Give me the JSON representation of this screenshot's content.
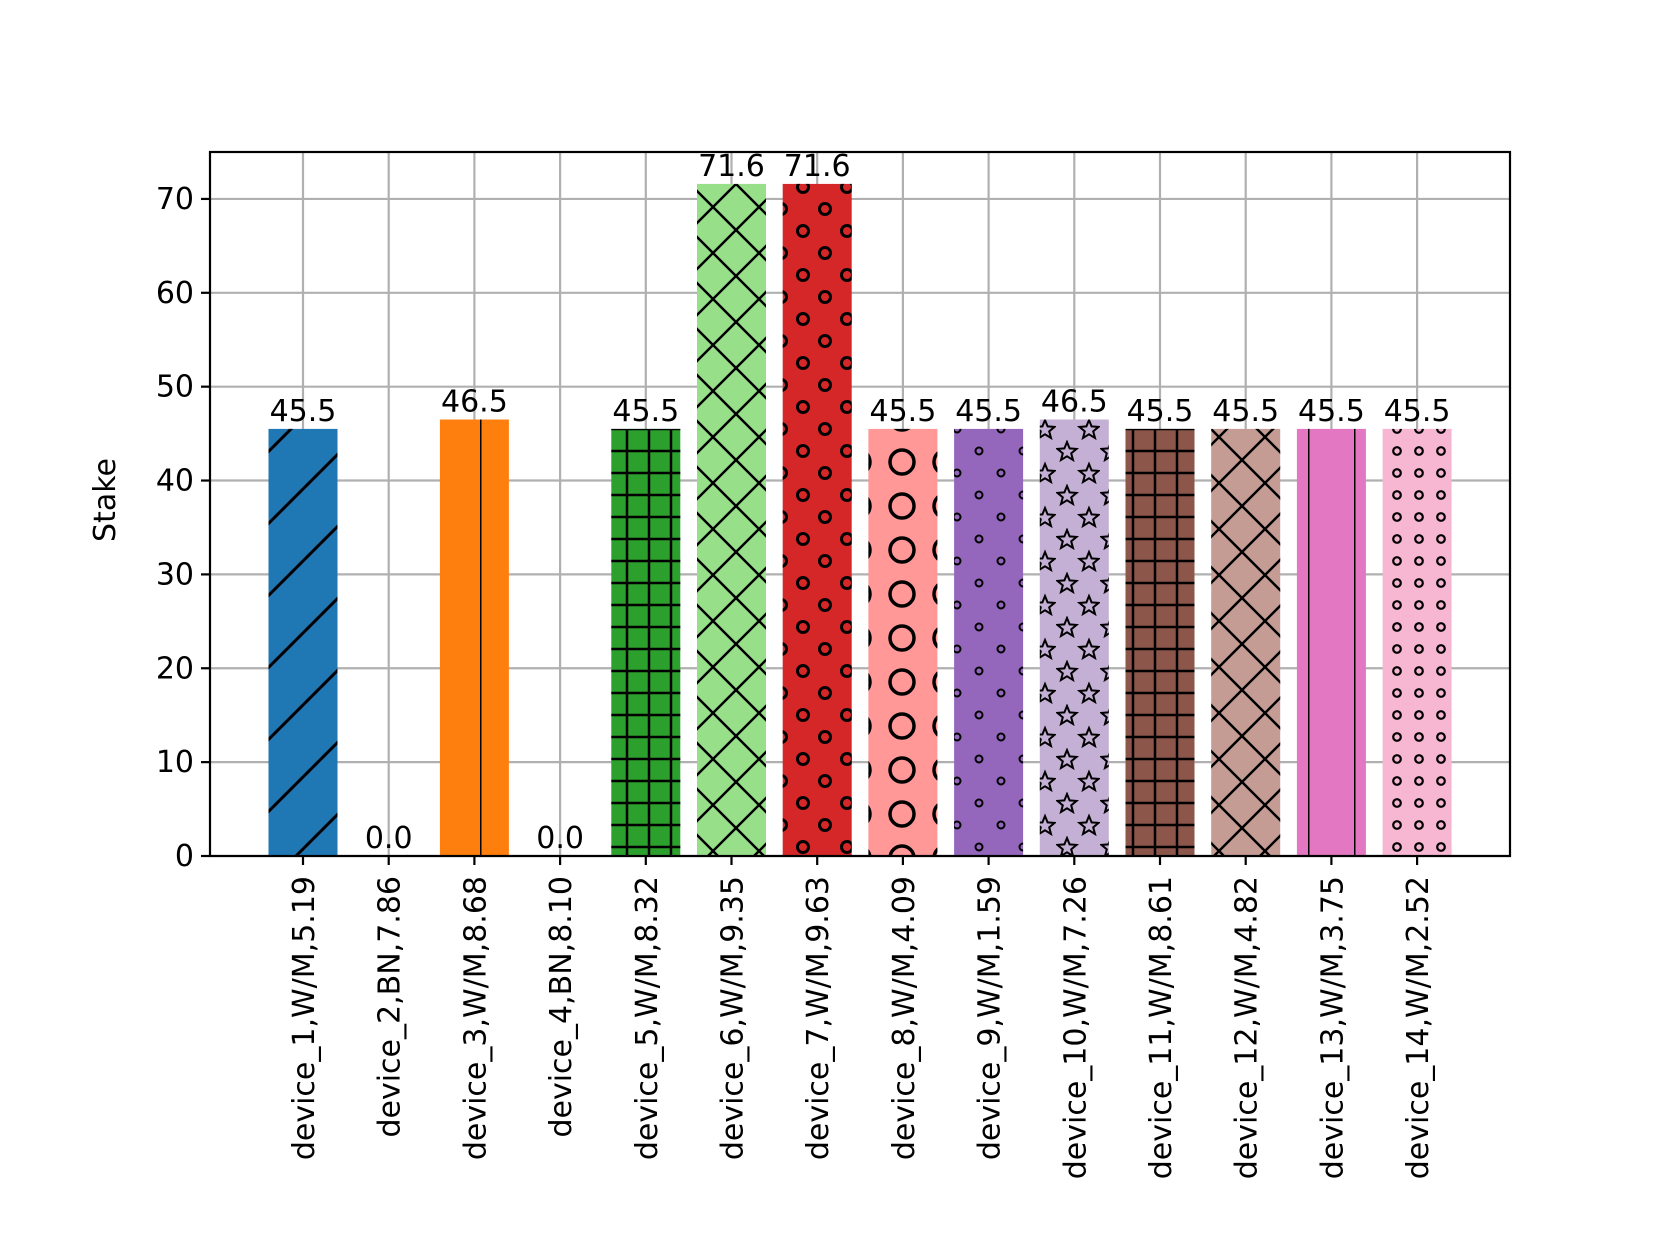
{
  "chart_data": {
    "type": "bar",
    "title": "",
    "xlabel": "",
    "ylabel": "Stake",
    "ylim": [
      0,
      75
    ],
    "yticks": [
      0,
      10,
      20,
      30,
      40,
      50,
      60,
      70
    ],
    "grid": true,
    "legend": "none",
    "categories": [
      "device_1,W/M,5.19",
      "device_2,BN,7.86",
      "device_3,W/M,8.68",
      "device_4,BN,8.10",
      "device_5,W/M,8.32",
      "device_6,W/M,9.35",
      "device_7,W/M,9.63",
      "device_8,W/M,4.09",
      "device_9,W/M,1.59",
      "device_10,W/M,7.26",
      "device_11,W/M,8.61",
      "device_12,W/M,4.82",
      "device_13,W/M,3.75",
      "device_14,W/M,2.52"
    ],
    "values": [
      45.5,
      0.0,
      46.5,
      0.0,
      45.5,
      71.6,
      71.6,
      45.5,
      45.5,
      46.5,
      45.5,
      45.5,
      45.5,
      45.5
    ],
    "value_labels": [
      "45.5",
      "0.0",
      "46.5",
      "0.0",
      "45.5",
      "71.6",
      "71.6",
      "45.5",
      "45.5",
      "46.5",
      "45.5",
      "45.5",
      "45.5",
      "45.5"
    ],
    "colors": [
      "#1f77b4",
      "#ff7f0e",
      "#ff7f0e",
      "#2ca02c",
      "#2ca02c",
      "#98df8a",
      "#d62728",
      "#ff9896",
      "#9467bd",
      "#c5b0d5",
      "#8c564b",
      "#c49c94",
      "#e377c2",
      "#f7b6d2"
    ],
    "hatches": [
      "diagonal",
      "none",
      "vertical-lines",
      "none",
      "grid",
      "cross",
      "small-circles",
      "large-circles",
      "dots",
      "stars",
      "grid",
      "cross",
      "vertical-lines",
      "dense-circles"
    ]
  }
}
